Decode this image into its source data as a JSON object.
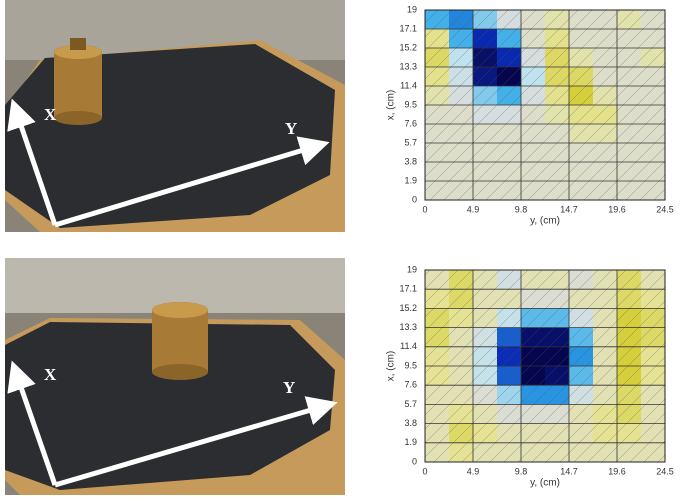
{
  "photos": [
    {
      "x_label": "X",
      "y_label": "Y"
    },
    {
      "x_label": "X",
      "y_label": "Y"
    }
  ],
  "chart_data": [
    {
      "type": "heatmap",
      "xlabel": "y, (cm)",
      "ylabel": "x, (cm)",
      "xlim": [
        0,
        24.5
      ],
      "ylim": [
        0,
        19
      ],
      "xticks": [
        0,
        4.9,
        9.8,
        14.7,
        19.6,
        24.5
      ],
      "yticks": [
        0,
        1.9,
        3.8,
        5.7,
        7.6,
        9.5,
        11.4,
        13.3,
        15.2,
        17.1,
        19
      ],
      "colors": [
        "#06064f",
        "#0a2fc0",
        "#2fa8e8",
        "#bfe3ee",
        "#d9dcdc",
        "#e6e49a",
        "#d6cf3c"
      ],
      "values": [
        [
          -0.5,
          -0.6,
          -0.4,
          -0.1,
          0,
          0.1,
          0,
          0,
          0.1,
          0
        ],
        [
          0.2,
          -0.5,
          -0.8,
          -0.5,
          0,
          0.2,
          0,
          0,
          0,
          0
        ],
        [
          0.3,
          -0.3,
          -0.95,
          -0.8,
          -0.1,
          0.3,
          0.1,
          0,
          0,
          0.1
        ],
        [
          0.2,
          -0.2,
          -0.9,
          -1,
          -0.3,
          0.3,
          0.3,
          0,
          0,
          0
        ],
        [
          0.1,
          -0.1,
          -0.4,
          -0.5,
          -0.1,
          0.2,
          0.4,
          0.1,
          0,
          0
        ],
        [
          0,
          0,
          -0.1,
          -0.1,
          0,
          0.1,
          0.2,
          0.2,
          0,
          0
        ],
        [
          0,
          0,
          0,
          0,
          0,
          0,
          0.1,
          0.1,
          0,
          0
        ],
        [
          0,
          0,
          0,
          0,
          0,
          0,
          0,
          0,
          0,
          0
        ],
        [
          0,
          0,
          0,
          0,
          0,
          0,
          0,
          0,
          0,
          0
        ],
        [
          0,
          0,
          0,
          0,
          0,
          0,
          0,
          0,
          0,
          0
        ]
      ]
    },
    {
      "type": "heatmap",
      "xlabel": "y, (cm)",
      "ylabel": "x, (cm)",
      "xlim": [
        0,
        24.5
      ],
      "ylim": [
        0,
        19
      ],
      "xticks": [
        0,
        4.9,
        9.8,
        14.7,
        19.6,
        24.5
      ],
      "yticks": [
        0,
        1.9,
        3.8,
        5.7,
        7.6,
        9.5,
        11.4,
        13.3,
        15.2,
        17.1,
        19
      ],
      "colors": [
        "#06064f",
        "#0a2fc0",
        "#2fa8e8",
        "#bfe3ee",
        "#d9dcdc",
        "#e6e49a",
        "#d6cf3c"
      ],
      "values": [
        [
          0,
          0.2,
          0,
          -0.2,
          0,
          0,
          -0.1,
          0,
          0.2,
          0
        ],
        [
          0.1,
          0.2,
          0,
          0,
          -0.1,
          -0.1,
          0,
          0,
          0.2,
          0.1
        ],
        [
          0.2,
          0.1,
          0,
          -0.3,
          -0.5,
          -0.5,
          -0.2,
          0,
          0.3,
          0.2
        ],
        [
          0.2,
          0,
          -0.2,
          -0.7,
          -0.95,
          -0.95,
          -0.5,
          0,
          0.3,
          0.2
        ],
        [
          0.1,
          0,
          -0.3,
          -0.8,
          -1,
          -1,
          -0.6,
          0,
          0.3,
          0.1
        ],
        [
          0.1,
          0,
          -0.3,
          -0.7,
          -1,
          -0.95,
          -0.5,
          0,
          0.3,
          0.1
        ],
        [
          0,
          0,
          -0.1,
          -0.4,
          -0.6,
          -0.6,
          -0.2,
          0,
          0.2,
          0
        ],
        [
          0,
          0.1,
          0,
          -0.1,
          -0.1,
          -0.1,
          0,
          0.1,
          0.2,
          0
        ],
        [
          0,
          0.2,
          0.1,
          0,
          0,
          0,
          0,
          0.1,
          0.1,
          0
        ],
        [
          0,
          0.1,
          0,
          0,
          0,
          0,
          0,
          0,
          0,
          0
        ]
      ]
    }
  ]
}
